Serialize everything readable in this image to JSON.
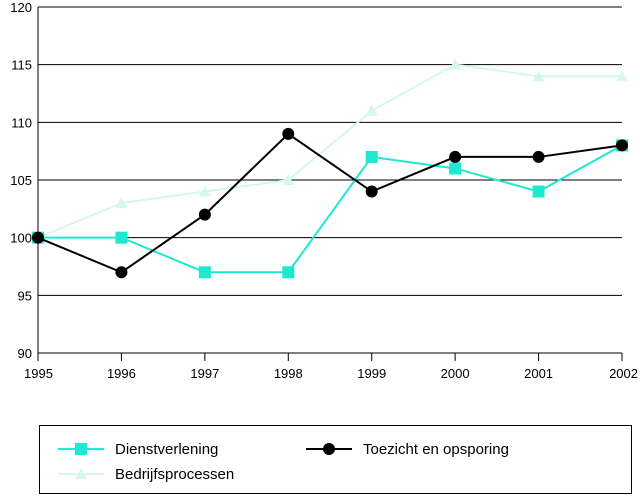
{
  "chart_data": {
    "type": "line",
    "title": "",
    "xlabel": "",
    "ylabel": "",
    "x": [
      "1995",
      "1996",
      "1997",
      "1998",
      "1999",
      "2000",
      "2001",
      "2002"
    ],
    "ylim": [
      90,
      120
    ],
    "yticks": [
      90,
      95,
      100,
      105,
      110,
      115,
      120
    ],
    "grid": true,
    "legend_position": "bottom",
    "series": [
      {
        "name": "Dienstverlening",
        "marker": "square",
        "color": "#1de9d1",
        "values": [
          100,
          100,
          97,
          97,
          107,
          106,
          104,
          108
        ]
      },
      {
        "name": "Toezicht en opsporing",
        "marker": "circle",
        "color": "#000000",
        "values": [
          100,
          97,
          102,
          109,
          104,
          107,
          107,
          108
        ]
      },
      {
        "name": "Bedrijfsprocessen",
        "marker": "triangle",
        "color": "#d5f7f1",
        "values": [
          100,
          103,
          104,
          105,
          111,
          115,
          114,
          114
        ]
      }
    ]
  }
}
